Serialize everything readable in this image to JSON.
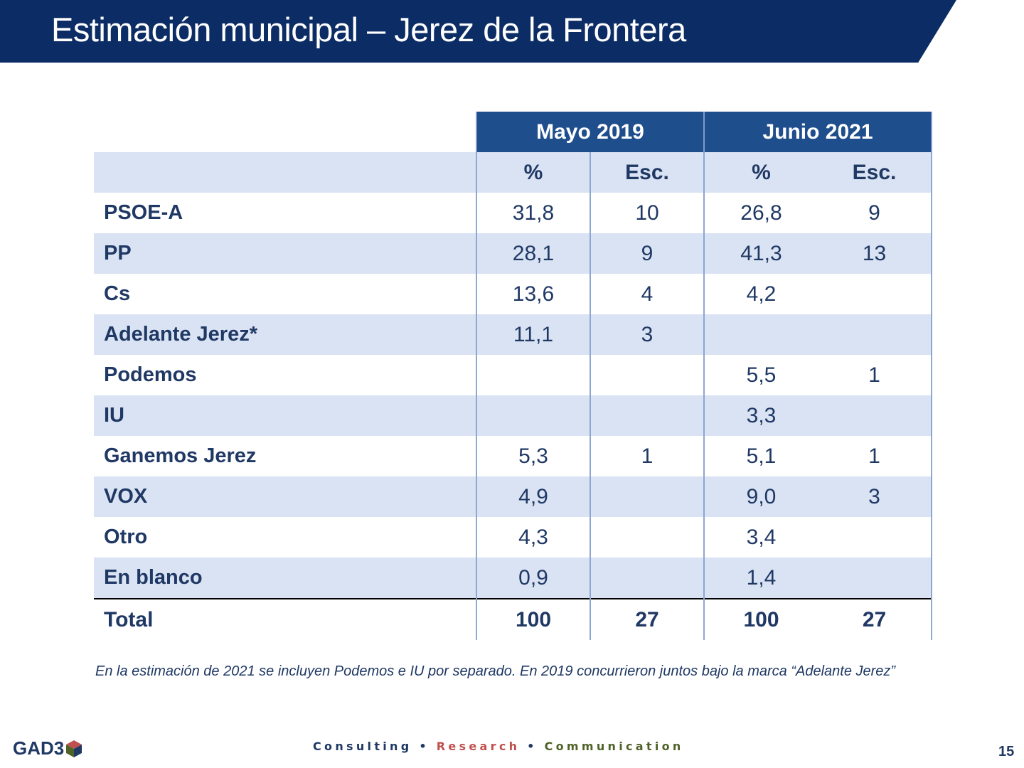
{
  "slide": {
    "title": "Estimación municipal – Jerez de la Frontera",
    "page_number": "15"
  },
  "table": {
    "periods": [
      "Mayo 2019",
      "Junio 2021"
    ],
    "subheaders": [
      "%",
      "Esc.",
      "%",
      "Esc."
    ],
    "rows": [
      {
        "party": "PSOE-A",
        "may_pct": "31,8",
        "may_esc": "10",
        "jun_pct": "26,8",
        "jun_esc": "9"
      },
      {
        "party": "PP",
        "may_pct": "28,1",
        "may_esc": "9",
        "jun_pct": "41,3",
        "jun_esc": "13"
      },
      {
        "party": "Cs",
        "may_pct": "13,6",
        "may_esc": "4",
        "jun_pct": "4,2",
        "jun_esc": ""
      },
      {
        "party": "Adelante Jerez*",
        "may_pct": "11,1",
        "may_esc": "3",
        "jun_pct": "",
        "jun_esc": ""
      },
      {
        "party": "Podemos",
        "may_pct": "",
        "may_esc": "",
        "jun_pct": "5,5",
        "jun_esc": "1"
      },
      {
        "party": "IU",
        "may_pct": "",
        "may_esc": "",
        "jun_pct": "3,3",
        "jun_esc": ""
      },
      {
        "party": "Ganemos Jerez",
        "may_pct": "5,3",
        "may_esc": "1",
        "jun_pct": "5,1",
        "jun_esc": "1"
      },
      {
        "party": "VOX",
        "may_pct": "4,9",
        "may_esc": "",
        "jun_pct": "9,0",
        "jun_esc": "3"
      },
      {
        "party": "Otro",
        "may_pct": "4,3",
        "may_esc": "",
        "jun_pct": "3,4",
        "jun_esc": ""
      },
      {
        "party": "En blanco",
        "may_pct": "0,9",
        "may_esc": "",
        "jun_pct": "1,4",
        "jun_esc": ""
      }
    ],
    "total": {
      "label": "Total",
      "may_pct": "100",
      "may_esc": "27",
      "jun_pct": "100",
      "jun_esc": "27"
    }
  },
  "footnote": "En la estimación de 2021 se incluyen Podemos e IU por separado. En 2019 concurrieron juntos bajo la marca “Adelante Jerez”",
  "footer": {
    "logo_text": "GAD3",
    "tagline_1": "Consulting",
    "tagline_sep": "•",
    "tagline_2": "Research",
    "tagline_3": "Communication"
  },
  "colors": {
    "title_bar": "#0b2c64",
    "header_cell": "#1f4e8c",
    "shaded_row": "#dae3f3",
    "text": "#1f3864",
    "research": "#c0504d",
    "communication": "#4f6228"
  }
}
